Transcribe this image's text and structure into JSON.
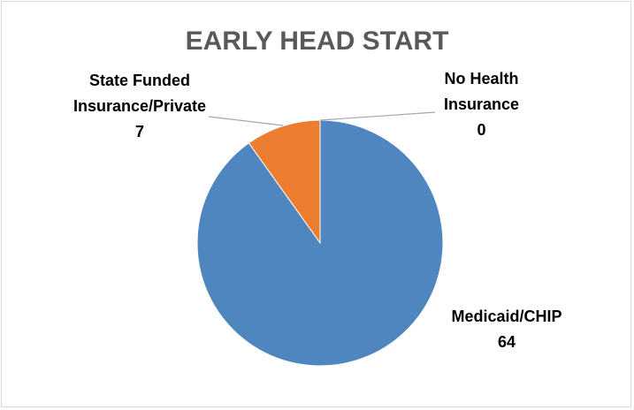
{
  "chart_data": {
    "type": "pie",
    "title": "EARLY HEAD START",
    "categories": [
      "Medicaid/CHIP",
      "State Funded Insurance/Private",
      "No Health Insurance"
    ],
    "values": [
      64,
      7,
      0
    ],
    "colors": [
      "#4f86c0",
      "#ed7d31",
      "#a5a5a5"
    ]
  }
}
